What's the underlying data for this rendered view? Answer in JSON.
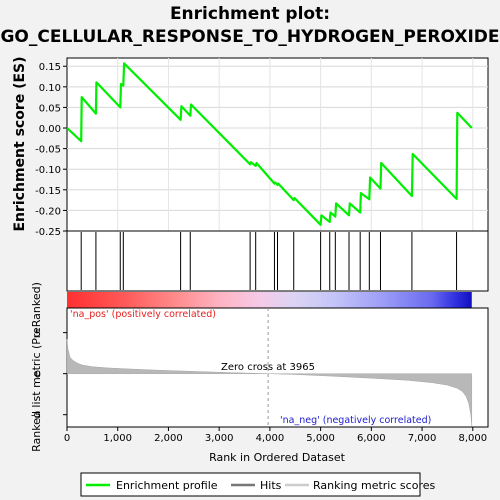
{
  "title_line1": "Enrichment plot:",
  "title_line2": "GO_CELLULAR_RESPONSE_TO_HYDROGEN_PEROXIDE",
  "chart_data": {
    "type": "line",
    "xlabel": "Rank in Ordered Dataset",
    "xlim": [
      0,
      8300
    ],
    "x_ticks": [
      0,
      1000,
      2000,
      3000,
      4000,
      5000,
      6000,
      7000,
      8000
    ],
    "x_tick_labels": [
      "0",
      "1,000",
      "2,000",
      "3,000",
      "4,000",
      "5,000",
      "6,000",
      "7,000",
      "8,000"
    ],
    "es_panel": {
      "ylabel": "Enrichment score (ES)",
      "ylim": [
        -0.25,
        0.17
      ],
      "y_ticks": [
        0.15,
        0.1,
        0.05,
        0.0,
        -0.05,
        -0.1,
        -0.15,
        -0.2,
        -0.25
      ],
      "y_tick_labels": [
        "0.15",
        "0.10",
        "0.05",
        "0.00",
        "-0.05",
        "-0.10",
        "-0.15",
        "-0.20",
        "-0.25"
      ],
      "series": [
        {
          "name": "Enrichment profile",
          "color": "#00ee00",
          "x": [
            0,
            280,
            290,
            570,
            580,
            1050,
            1065,
            1110,
            1125,
            2240,
            2255,
            2430,
            2445,
            3610,
            3625,
            3720,
            3735,
            4090,
            4105,
            4150,
            4165,
            4470,
            4485,
            5000,
            5015,
            5180,
            5195,
            5290,
            5305,
            5560,
            5575,
            5780,
            5795,
            5960,
            5975,
            6180,
            6195,
            6800,
            6815,
            7680,
            7695,
            7980
          ],
          "y": [
            0.0,
            -0.032,
            0.075,
            0.035,
            0.111,
            0.05,
            0.107,
            0.103,
            0.157,
            0.02,
            0.053,
            0.03,
            0.057,
            -0.088,
            -0.083,
            -0.092,
            -0.085,
            -0.135,
            -0.132,
            -0.138,
            -0.135,
            -0.175,
            -0.17,
            -0.235,
            -0.212,
            -0.228,
            -0.205,
            -0.215,
            -0.183,
            -0.212,
            -0.183,
            -0.205,
            -0.158,
            -0.173,
            -0.12,
            -0.147,
            -0.085,
            -0.165,
            -0.063,
            -0.172,
            0.037,
            0.0
          ]
        }
      ]
    },
    "hits": [
      280,
      570,
      1050,
      1110,
      2240,
      2430,
      3610,
      3720,
      4090,
      4150,
      4470,
      5000,
      5180,
      5290,
      5560,
      5780,
      5960,
      6180,
      6800,
      7680
    ],
    "hits_series_name": "Hits",
    "metric_panel": {
      "ylabel": "Ranked list metric (PreRanked)",
      "ylim": [
        -6.5,
        8
      ],
      "y_ticks": [
        5,
        0,
        -5
      ],
      "y_tick_labels": [
        "5",
        "0",
        "-5"
      ],
      "series_name": "Ranking metric scores",
      "zero_cross_label": "Zero cross at 3965",
      "zero_cross": 3965,
      "pos_label": "'na_pos' (positively correlated)",
      "neg_label": "'na_neg' (negatively correlated)",
      "profile": {
        "x": [
          0,
          20,
          60,
          120,
          200,
          300,
          500,
          800,
          1200,
          1800,
          2500,
          3200,
          3965,
          4500,
          5200,
          6000,
          6700,
          7200,
          7500,
          7700,
          7800,
          7870,
          7920,
          7960,
          7980
        ],
        "y": [
          4.2,
          3.0,
          2.0,
          1.6,
          1.3,
          1.05,
          0.85,
          0.7,
          0.58,
          0.42,
          0.28,
          0.13,
          0.0,
          -0.1,
          -0.3,
          -0.55,
          -0.8,
          -1.1,
          -1.4,
          -1.8,
          -2.2,
          -2.8,
          -3.6,
          -5.0,
          -6.4
        ]
      }
    },
    "legend": {
      "placement": "bottom",
      "entries": [
        "Enrichment profile",
        "Hits",
        "Ranking metric scores"
      ]
    }
  }
}
